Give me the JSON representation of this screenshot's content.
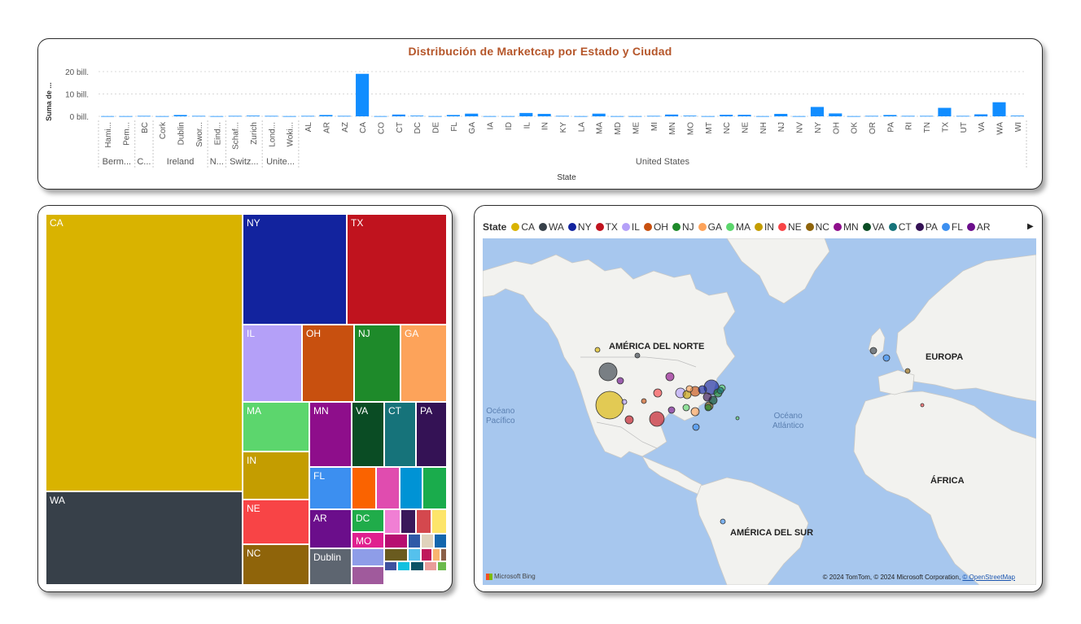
{
  "bar_chart": {
    "title": "Distribución de Marketcap por Estado y Ciudad",
    "ylabel": "Suma de ...",
    "xlabel": "State",
    "color": "#118dff"
  },
  "chart_data": [
    {
      "type": "bar",
      "title": "Distribución de Marketcap por Estado y Ciudad",
      "ylabel": "Suma de ...",
      "xlabel": "State",
      "ylim": [
        0,
        20
      ],
      "y_ticks": [
        "0 bill.",
        "10 bill.",
        "20 bill."
      ],
      "categories": [
        "Hami...",
        "Pem...",
        "BC",
        "Cork",
        "Dublin",
        "Swor...",
        "Eind...",
        "Schaf...",
        "Zurich",
        "Lond...",
        "Woki...",
        "AL",
        "AR",
        "AZ",
        "CA",
        "CO",
        "CT",
        "DC",
        "DE",
        "FL",
        "GA",
        "IA",
        "ID",
        "IL",
        "IN",
        "KY",
        "LA",
        "MA",
        "MD",
        "ME",
        "MI",
        "MN",
        "MO",
        "MT",
        "NC",
        "NE",
        "NH",
        "NJ",
        "NV",
        "NY",
        "OH",
        "OK",
        "OR",
        "PA",
        "RI",
        "TN",
        "TX",
        "UT",
        "VA",
        "WA",
        "WI"
      ],
      "groups": [
        {
          "label": "Berm...",
          "count": 2
        },
        {
          "label": "C...",
          "count": 1
        },
        {
          "label": "Ireland",
          "count": 3
        },
        {
          "label": "N...",
          "count": 1
        },
        {
          "label": "Switz...",
          "count": 2
        },
        {
          "label": "Unite...",
          "count": 2
        },
        {
          "label": "United States",
          "count": 40
        }
      ],
      "values": [
        0.1,
        0.1,
        0.2,
        0.1,
        0.6,
        0.2,
        0.1,
        0.2,
        0.3,
        0.2,
        0.1,
        0.2,
        0.6,
        0.2,
        19.0,
        0.1,
        0.8,
        0.3,
        0.1,
        0.6,
        1.2,
        0.1,
        0.1,
        1.5,
        1.1,
        0.2,
        0.1,
        1.2,
        0.1,
        0.1,
        0.2,
        0.8,
        0.3,
        0.1,
        0.7,
        0.7,
        0.1,
        1.1,
        0.1,
        4.2,
        1.3,
        0.1,
        0.2,
        0.6,
        0.2,
        0.2,
        3.8,
        0.2,
        0.9,
        6.3,
        0.3
      ]
    },
    {
      "type": "treemap",
      "items": [
        {
          "label": "CA",
          "color": "#d9b300"
        },
        {
          "label": "WA",
          "color": "#374049"
        },
        {
          "label": "NY",
          "color": "#12239e"
        },
        {
          "label": "TX",
          "color": "#c0131e"
        },
        {
          "label": "IL",
          "color": "#b4a0f8"
        },
        {
          "label": "OH",
          "color": "#c8500f"
        },
        {
          "label": "NJ",
          "color": "#1e8a2a"
        },
        {
          "label": "GA",
          "color": "#fda35a"
        },
        {
          "label": "MA",
          "color": "#5cd66d"
        },
        {
          "label": "MN",
          "color": "#8e0e8b"
        },
        {
          "label": "VA",
          "color": "#0a4c24"
        },
        {
          "label": "CT",
          "color": "#16737a"
        },
        {
          "label": "PA",
          "color": "#341255"
        },
        {
          "label": "IN",
          "color": "#c49d00"
        },
        {
          "label": "FL",
          "color": "#3c8ff0"
        },
        {
          "label": "NE",
          "color": "#f84446"
        },
        {
          "label": "AR",
          "color": "#6b0e8b"
        },
        {
          "label": "DC",
          "color": "#20ac4a"
        },
        {
          "label": "MO",
          "color": "#e0208f"
        },
        {
          "label": "NC",
          "color": "#8f640a"
        },
        {
          "label": "Dublin",
          "color": "#5d6570"
        }
      ]
    }
  ],
  "treemap_small_colors": [
    "#fa6300",
    "#e04caf",
    "#0093d5",
    "#1aac4c",
    "#f07fd4",
    "#3a185b",
    "#d4484e",
    "#fde56a",
    "#b70e71",
    "#2f59a7",
    "#e0d2bc",
    "#1366ad",
    "#8e9de8",
    "#6a5b1f",
    "#55c1ed",
    "#bf1a5b",
    "#f9b56f",
    "#8a6048",
    "#a05a9c",
    "#3e52a0",
    "#12c1e0",
    "#0b5266",
    "#e99d9a",
    "#6bba4c"
  ],
  "map": {
    "legend_title": "State",
    "legend": [
      {
        "label": "CA",
        "color": "#d9b300"
      },
      {
        "label": "WA",
        "color": "#374049"
      },
      {
        "label": "NY",
        "color": "#12239e"
      },
      {
        "label": "TX",
        "color": "#c0131e"
      },
      {
        "label": "IL",
        "color": "#b4a0f8"
      },
      {
        "label": "OH",
        "color": "#c8500f"
      },
      {
        "label": "NJ",
        "color": "#1e8a2a"
      },
      {
        "label": "GA",
        "color": "#fda35a"
      },
      {
        "label": "MA",
        "color": "#5cd66d"
      },
      {
        "label": "IN",
        "color": "#c49d00"
      },
      {
        "label": "NE",
        "color": "#f84446"
      },
      {
        "label": "NC",
        "color": "#8f640a"
      },
      {
        "label": "MN",
        "color": "#8e0e8b"
      },
      {
        "label": "VA",
        "color": "#0a4c24"
      },
      {
        "label": "CT",
        "color": "#16737a"
      },
      {
        "label": "PA",
        "color": "#341255"
      },
      {
        "label": "FL",
        "color": "#3c8ff0"
      },
      {
        "label": "AR",
        "color": "#6b0e8b"
      }
    ],
    "labels": {
      "north_america": "AMÉRICA DEL NORTE",
      "south_america": "AMÉRICA DEL SUR",
      "europe": "EUROPA",
      "africa": "ÁFRICA",
      "pacific_1": "Océano",
      "pacific_2": "Pacífico",
      "atlantic_1": "Océano",
      "atlantic_2": "Atlántico"
    },
    "bing": "Microsoft Bing",
    "copyright": "© 2024 TomTom, © 2024 Microsoft Corporation,",
    "copyright_link": "© OpenStreetMap"
  }
}
